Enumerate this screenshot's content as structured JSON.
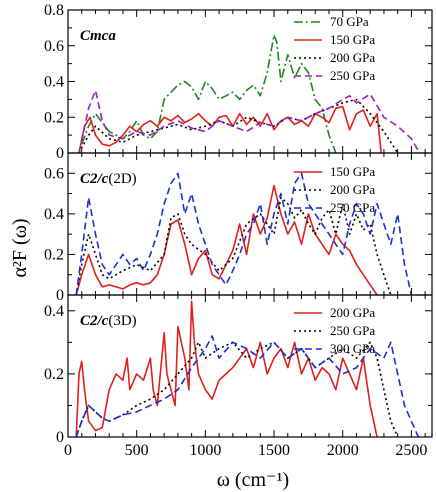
{
  "figure": {
    "xlabel": "ω (cm⁻¹)",
    "ylabel": "α²F (ω)"
  },
  "chart_data": [
    {
      "type": "line",
      "panel_label": "Cmca",
      "panel_label_suffix": "",
      "xlim": [
        0,
        2650
      ],
      "ylim": [
        0,
        0.8
      ],
      "xticks": [
        0,
        500,
        1000,
        1500,
        2000,
        2500
      ],
      "yticks": [
        0,
        0.2,
        0.4,
        0.6,
        0.8
      ],
      "ytick_labels": [
        "0",
        "0.2",
        "0.4",
        "0.6",
        "0.8"
      ],
      "legend_position": "top-right",
      "series": [
        {
          "name": "70    GPa",
          "color": "#1a8a1a",
          "dash": "9,3,2,3",
          "x": [
            100,
            150,
            200,
            250,
            300,
            350,
            400,
            450,
            500,
            550,
            600,
            650,
            700,
            750,
            800,
            850,
            900,
            950,
            1000,
            1050,
            1100,
            1150,
            1200,
            1250,
            1300,
            1350,
            1400,
            1450,
            1500,
            1520,
            1550,
            1600,
            1650,
            1700,
            1750,
            1800,
            1850,
            1900,
            1950
          ],
          "y": [
            0.05,
            0.15,
            0.22,
            0.17,
            0.12,
            0.1,
            0.08,
            0.12,
            0.18,
            0.1,
            0.08,
            0.12,
            0.3,
            0.34,
            0.38,
            0.4,
            0.37,
            0.3,
            0.4,
            0.36,
            0.3,
            0.32,
            0.34,
            0.3,
            0.35,
            0.38,
            0.32,
            0.45,
            0.66,
            0.62,
            0.4,
            0.55,
            0.42,
            0.5,
            0.45,
            0.3,
            0.25,
            0.1,
            0.0
          ]
        },
        {
          "name": "150 GPa",
          "color": "#e0201b",
          "dash": "",
          "x": [
            80,
            120,
            160,
            200,
            250,
            300,
            350,
            400,
            450,
            500,
            550,
            600,
            650,
            700,
            750,
            800,
            850,
            900,
            950,
            1000,
            1050,
            1100,
            1150,
            1200,
            1250,
            1300,
            1350,
            1400,
            1450,
            1500,
            1550,
            1600,
            1650,
            1700,
            1750,
            1800,
            1850,
            1900,
            1950,
            2000,
            2050,
            2100,
            2150,
            2200,
            2250,
            2280
          ],
          "y": [
            0.0,
            0.15,
            0.2,
            0.1,
            0.05,
            0.04,
            0.06,
            0.1,
            0.15,
            0.12,
            0.16,
            0.18,
            0.15,
            0.2,
            0.18,
            0.21,
            0.17,
            0.19,
            0.22,
            0.18,
            0.15,
            0.2,
            0.21,
            0.15,
            0.22,
            0.16,
            0.2,
            0.15,
            0.22,
            0.13,
            0.18,
            0.2,
            0.16,
            0.18,
            0.15,
            0.22,
            0.2,
            0.17,
            0.25,
            0.26,
            0.13,
            0.22,
            0.24,
            0.15,
            0.22,
            0.0
          ]
        },
        {
          "name": "200 GPa",
          "color": "#000000",
          "dash": "2,3",
          "x": [
            80,
            150,
            200,
            300,
            400,
            500,
            600,
            700,
            800,
            900,
            1000,
            1100,
            1200,
            1300,
            1400,
            1500,
            1600,
            1700,
            1800,
            1900,
            2000,
            2100,
            2200,
            2300,
            2400
          ],
          "y": [
            0.0,
            0.1,
            0.15,
            0.08,
            0.06,
            0.1,
            0.12,
            0.14,
            0.16,
            0.13,
            0.15,
            0.18,
            0.15,
            0.2,
            0.17,
            0.15,
            0.2,
            0.18,
            0.22,
            0.25,
            0.28,
            0.3,
            0.22,
            0.12,
            0.0
          ]
        },
        {
          "name": "250 GPa",
          "color": "#9a1fc0",
          "dash": "7,4",
          "x": [
            80,
            150,
            200,
            250,
            300,
            400,
            500,
            600,
            700,
            800,
            900,
            1000,
            1100,
            1200,
            1300,
            1400,
            1500,
            1600,
            1700,
            1800,
            1900,
            2000,
            2050,
            2100,
            2200,
            2300,
            2400,
            2500,
            2560
          ],
          "y": [
            0.0,
            0.25,
            0.35,
            0.18,
            0.1,
            0.08,
            0.12,
            0.1,
            0.15,
            0.18,
            0.14,
            0.12,
            0.18,
            0.15,
            0.12,
            0.17,
            0.15,
            0.2,
            0.18,
            0.22,
            0.25,
            0.3,
            0.32,
            0.28,
            0.33,
            0.2,
            0.15,
            0.08,
            0.0
          ]
        }
      ]
    },
    {
      "type": "line",
      "panel_label": "C2/c",
      "panel_label_suffix": "(2D)",
      "xlim": [
        0,
        2650
      ],
      "ylim": [
        0,
        0.7
      ],
      "xticks": [
        0,
        500,
        1000,
        1500,
        2000,
        2500
      ],
      "yticks": [
        0,
        0.2,
        0.4,
        0.6
      ],
      "ytick_labels": [
        "0",
        "0.2",
        "0.4",
        "0.6"
      ],
      "legend_position": "top-right",
      "series": [
        {
          "name": "150 GPa",
          "color": "#e0201b",
          "dash": "",
          "x": [
            60,
            100,
            150,
            200,
            250,
            300,
            350,
            400,
            450,
            500,
            550,
            600,
            650,
            700,
            750,
            800,
            850,
            900,
            950,
            1000,
            1050,
            1100,
            1150,
            1200,
            1250,
            1300,
            1350,
            1400,
            1450,
            1500,
            1550,
            1600,
            1650,
            1700,
            1750,
            1800,
            1850,
            1900,
            1950,
            2000,
            2050,
            2100,
            2150,
            2200,
            2250
          ],
          "y": [
            0.0,
            0.1,
            0.2,
            0.1,
            0.04,
            0.05,
            0.04,
            0.03,
            0.05,
            0.06,
            0.05,
            0.06,
            0.1,
            0.2,
            0.35,
            0.37,
            0.25,
            0.1,
            0.18,
            0.22,
            0.1,
            0.08,
            0.15,
            0.22,
            0.35,
            0.2,
            0.4,
            0.3,
            0.38,
            0.54,
            0.4,
            0.3,
            0.36,
            0.25,
            0.4,
            0.3,
            0.25,
            0.2,
            0.3,
            0.25,
            0.22,
            0.15,
            0.1,
            0.05,
            0.0
          ]
        },
        {
          "name": "200 GPa",
          "color": "#000000",
          "dash": "2,3",
          "x": [
            60,
            100,
            150,
            200,
            250,
            300,
            400,
            500,
            600,
            700,
            750,
            800,
            850,
            900,
            1000,
            1100,
            1200,
            1300,
            1400,
            1500,
            1550,
            1600,
            1650,
            1700,
            1750,
            1800,
            1850,
            1900,
            1950,
            2000,
            2050,
            2100,
            2150,
            2200,
            2250,
            2300,
            2350
          ],
          "y": [
            0.0,
            0.15,
            0.3,
            0.2,
            0.1,
            0.08,
            0.12,
            0.15,
            0.12,
            0.2,
            0.38,
            0.4,
            0.3,
            0.25,
            0.2,
            0.12,
            0.18,
            0.35,
            0.4,
            0.3,
            0.48,
            0.45,
            0.38,
            0.42,
            0.35,
            0.3,
            0.38,
            0.42,
            0.3,
            0.45,
            0.3,
            0.4,
            0.32,
            0.35,
            0.2,
            0.1,
            0.0
          ]
        },
        {
          "name": "250 GPa",
          "color": "#1a2fd6",
          "dash": "7,4",
          "x": [
            60,
            100,
            150,
            200,
            250,
            300,
            350,
            400,
            450,
            500,
            550,
            600,
            650,
            700,
            750,
            800,
            850,
            900,
            950,
            1000,
            1050,
            1100,
            1150,
            1200,
            1250,
            1300,
            1350,
            1400,
            1450,
            1500,
            1550,
            1600,
            1650,
            1700,
            1750,
            1800,
            1850,
            1900,
            1950,
            2000,
            2050,
            2100,
            2150,
            2200,
            2250,
            2300,
            2350,
            2400,
            2450,
            2500
          ],
          "y": [
            0.0,
            0.2,
            0.48,
            0.3,
            0.15,
            0.1,
            0.15,
            0.2,
            0.15,
            0.18,
            0.12,
            0.2,
            0.3,
            0.45,
            0.55,
            0.6,
            0.4,
            0.5,
            0.35,
            0.25,
            0.15,
            0.1,
            0.05,
            0.12,
            0.2,
            0.3,
            0.35,
            0.45,
            0.25,
            0.4,
            0.5,
            0.35,
            0.55,
            0.6,
            0.45,
            0.4,
            0.35,
            0.3,
            0.25,
            0.2,
            0.35,
            0.45,
            0.4,
            0.3,
            0.45,
            0.35,
            0.25,
            0.4,
            0.15,
            0.0
          ]
        }
      ]
    },
    {
      "type": "line",
      "panel_label": "C2/c",
      "panel_label_suffix": "(3D)",
      "xlim": [
        0,
        2650
      ],
      "ylim": [
        0,
        0.45
      ],
      "xticks": [
        0,
        500,
        1000,
        1500,
        2000,
        2500
      ],
      "yticks": [
        0,
        0.2,
        0.4
      ],
      "ytick_labels": [
        "0",
        "0.2",
        "0.4"
      ],
      "xtick_labels": [
        "0",
        "500",
        "1000",
        "1500",
        "2000",
        "2500"
      ],
      "legend_position": "top-right",
      "series": [
        {
          "name": "200 GPa",
          "color": "#e0201b",
          "dash": "",
          "x": [
            60,
            80,
            100,
            120,
            150,
            200,
            250,
            300,
            350,
            400,
            430,
            450,
            500,
            550,
            600,
            620,
            650,
            700,
            720,
            750,
            780,
            800,
            850,
            880,
            900,
            920,
            950,
            1000,
            1050,
            1100,
            1150,
            1200,
            1250,
            1300,
            1350,
            1400,
            1450,
            1500,
            1550,
            1600,
            1650,
            1700,
            1750,
            1800,
            1850,
            1900,
            1950,
            2000,
            2050,
            2100,
            2150,
            2200,
            2250
          ],
          "y": [
            0.0,
            0.2,
            0.24,
            0.15,
            0.05,
            0.02,
            0.03,
            0.15,
            0.2,
            0.18,
            0.25,
            0.15,
            0.2,
            0.18,
            0.25,
            0.15,
            0.1,
            0.33,
            0.2,
            0.15,
            0.1,
            0.35,
            0.25,
            0.15,
            0.43,
            0.3,
            0.2,
            0.15,
            0.12,
            0.18,
            0.2,
            0.22,
            0.25,
            0.28,
            0.22,
            0.3,
            0.2,
            0.25,
            0.28,
            0.22,
            0.3,
            0.2,
            0.25,
            0.18,
            0.22,
            0.2,
            0.15,
            0.25,
            0.2,
            0.15,
            0.25,
            0.1,
            0.0
          ]
        },
        {
          "name": "250 GPa",
          "color": "#000000",
          "dash": "2,3",
          "x": [
            60,
            100,
            150,
            200,
            250,
            300,
            400,
            500,
            600,
            700,
            800,
            900,
            950,
            1000,
            1100,
            1200,
            1300,
            1400,
            1500,
            1600,
            1700,
            1800,
            1900,
            2000,
            2100,
            2200,
            2250,
            2300,
            2350,
            2400
          ],
          "y": [
            0.0,
            0.05,
            0.1,
            0.08,
            0.06,
            0.05,
            0.07,
            0.1,
            0.12,
            0.15,
            0.2,
            0.25,
            0.3,
            0.25,
            0.28,
            0.3,
            0.25,
            0.28,
            0.3,
            0.25,
            0.28,
            0.22,
            0.25,
            0.28,
            0.25,
            0.3,
            0.25,
            0.15,
            0.05,
            0.0
          ]
        },
        {
          "name": "300 GPa",
          "color": "#1a2fd6",
          "dash": "7,4",
          "x": [
            60,
            100,
            150,
            200,
            250,
            300,
            400,
            500,
            600,
            700,
            800,
            900,
            1000,
            1050,
            1100,
            1200,
            1300,
            1400,
            1500,
            1600,
            1700,
            1800,
            1900,
            2000,
            2100,
            2200,
            2300,
            2350,
            2400,
            2450,
            2500,
            2550
          ],
          "y": [
            0.0,
            0.05,
            0.1,
            0.08,
            0.06,
            0.05,
            0.07,
            0.08,
            0.1,
            0.12,
            0.15,
            0.22,
            0.28,
            0.32,
            0.25,
            0.3,
            0.28,
            0.25,
            0.3,
            0.25,
            0.28,
            0.22,
            0.25,
            0.2,
            0.22,
            0.28,
            0.25,
            0.3,
            0.2,
            0.1,
            0.05,
            0.0
          ]
        }
      ]
    }
  ]
}
